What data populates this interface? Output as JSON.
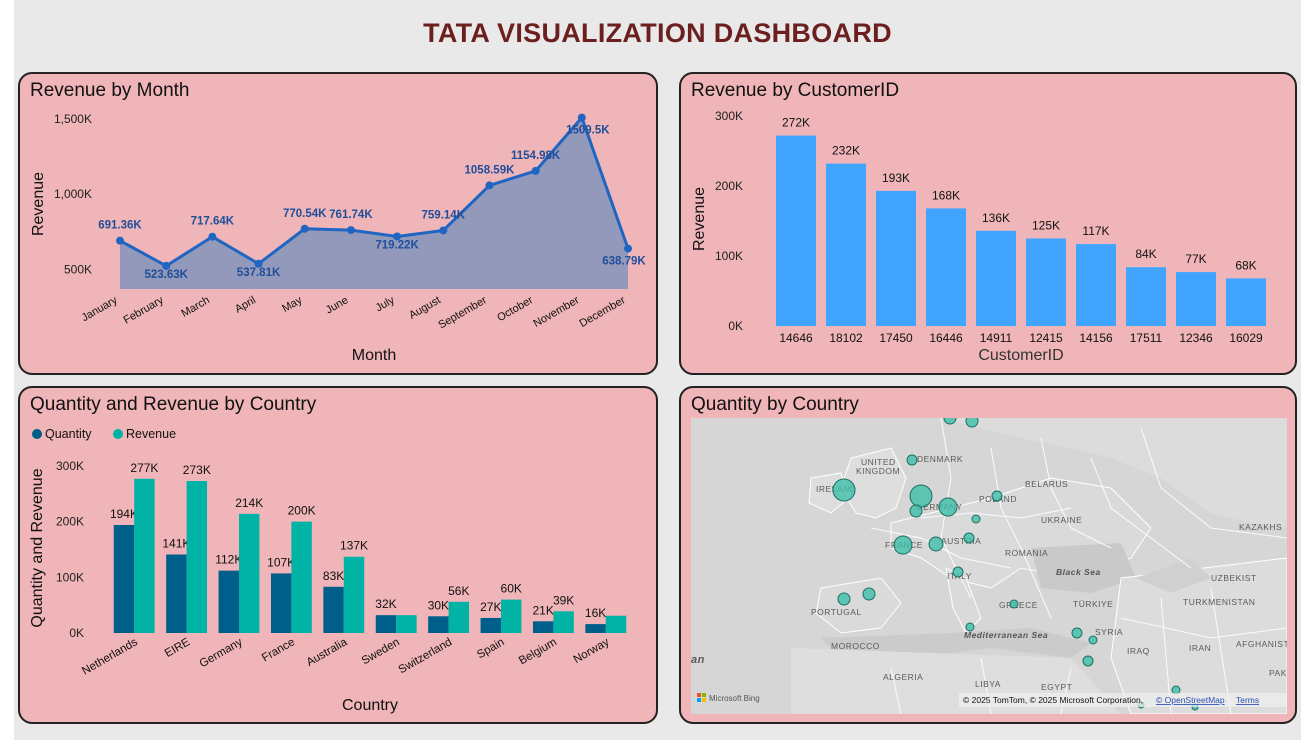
{
  "dashboard": {
    "title": "TATA VISUALIZATION DASHBOARD"
  },
  "panels": {
    "month": {
      "title": "Revenue by Month"
    },
    "customer": {
      "title": "Revenue by CustomerID"
    },
    "country": {
      "title": "Quantity and Revenue by Country"
    },
    "map": {
      "title": "Quantity by Country"
    }
  },
  "chart_data": [
    {
      "type": "area",
      "title": "Revenue by Month",
      "xlabel": "Month",
      "ylabel": "Revenue",
      "y_ticks": [
        "500K",
        "1,000K",
        "1,500K"
      ],
      "y_tick_values": [
        500000,
        1000000,
        1500000
      ],
      "ylim": [
        370000,
        1600000
      ],
      "categories": [
        "January",
        "February",
        "March",
        "April",
        "May",
        "June",
        "July",
        "August",
        "September",
        "October",
        "November",
        "December"
      ],
      "values": [
        691360,
        523630,
        717640,
        537810,
        770540,
        761740,
        719220,
        759140,
        1058590,
        1154980,
        1509500,
        638790
      ],
      "data_labels": [
        "691.36K",
        "523.63K",
        "717.64K",
        "537.81K",
        "770.54K",
        "761.74K",
        "719.22K",
        "759.14K",
        "1058.59K",
        "1154.98K",
        "1509.5K",
        "638.79K"
      ],
      "line_color": "#1f65c1",
      "area_color": "#9399bb"
    },
    {
      "type": "bar",
      "title": "Revenue by CustomerID",
      "xlabel": "CustomerID",
      "ylabel": "Revenue",
      "y_ticks": [
        "0K",
        "100K",
        "200K",
        "300K"
      ],
      "y_tick_values": [
        0,
        100000,
        200000,
        300000
      ],
      "ylim": [
        0,
        300000
      ],
      "categories": [
        "14646",
        "18102",
        "17450",
        "16446",
        "14911",
        "12415",
        "14156",
        "17511",
        "12346",
        "16029"
      ],
      "values": [
        272000,
        232000,
        193000,
        168000,
        136000,
        125000,
        117000,
        84000,
        77000,
        68000
      ],
      "data_labels": [
        "272K",
        "232K",
        "193K",
        "168K",
        "136K",
        "125K",
        "117K",
        "84K",
        "77K",
        "68K"
      ],
      "bar_color": "#41a5ff"
    },
    {
      "type": "bar",
      "title": "Quantity and Revenue by Country",
      "xlabel": "Country",
      "ylabel": "Quantity and Revenue",
      "y_ticks": [
        "0K",
        "100K",
        "200K",
        "300K"
      ],
      "y_tick_values": [
        0,
        100000,
        200000,
        300000
      ],
      "ylim": [
        0,
        300000
      ],
      "legend": "top-left",
      "categories": [
        "Netherlands",
        "EIRE",
        "Germany",
        "France",
        "Australia",
        "Sweden",
        "Switzerland",
        "Spain",
        "Belgium",
        "Norway"
      ],
      "series": [
        {
          "name": "Quantity",
          "color": "#005f8a",
          "values": [
            194000,
            141000,
            112000,
            107000,
            83000,
            32000,
            30000,
            27000,
            21000,
            16000
          ],
          "data_labels": [
            "194K",
            "141K",
            "112K",
            "107K",
            "83K",
            "32K",
            "30K",
            "27K",
            "21K",
            "16K"
          ]
        },
        {
          "name": "Revenue",
          "color": "#00b3a5",
          "values": [
            277000,
            273000,
            214000,
            200000,
            137000,
            32000,
            56000,
            60000,
            39000,
            31000
          ],
          "data_labels": [
            "277K",
            "273K",
            "214K",
            "200K",
            "137K",
            "",
            "56K",
            "60K",
            "39K",
            ""
          ]
        }
      ]
    }
  ],
  "map": {
    "labels": {
      "uk": "UNITED KINGDOM",
      "ireland": "IRELAND",
      "denmark": "DENMARK",
      "poland": "POLAND",
      "belarus": "BELARUS",
      "ukraine": "UKRAINE",
      "germany": "GERMANY",
      "austria": "AUSTRIA",
      "france": "FRANCE",
      "romania": "ROMANIA",
      "italy": "ITALY",
      "portugal": "PORTUGAL",
      "greece": "GREECE",
      "black_sea": "Black Sea",
      "turkiye": "TÜRKIYE",
      "syria": "SYRIA",
      "iraq": "IRAQ",
      "iran": "IRAN",
      "mediterranean": "Mediterranean Sea",
      "morocco": "MOROCCO",
      "algeria": "ALGERIA",
      "libya": "LIBYA",
      "egypt": "EGYPT",
      "kazakh": "KAZAKHS",
      "uzbek": "UZBEKIST",
      "turkmen": "TURKMENISTAN",
      "afghan": "AFGHANIST",
      "pak": "PAK",
      "left_cut": "an"
    },
    "bubble_color": "#3fbfaa",
    "bing_logo": "Microsoft Bing",
    "attribution": "© 2025 TomTom, © 2025 Microsoft Corporation,",
    "attribution_link": "© OpenStreetMap",
    "terms_link": "Terms"
  }
}
